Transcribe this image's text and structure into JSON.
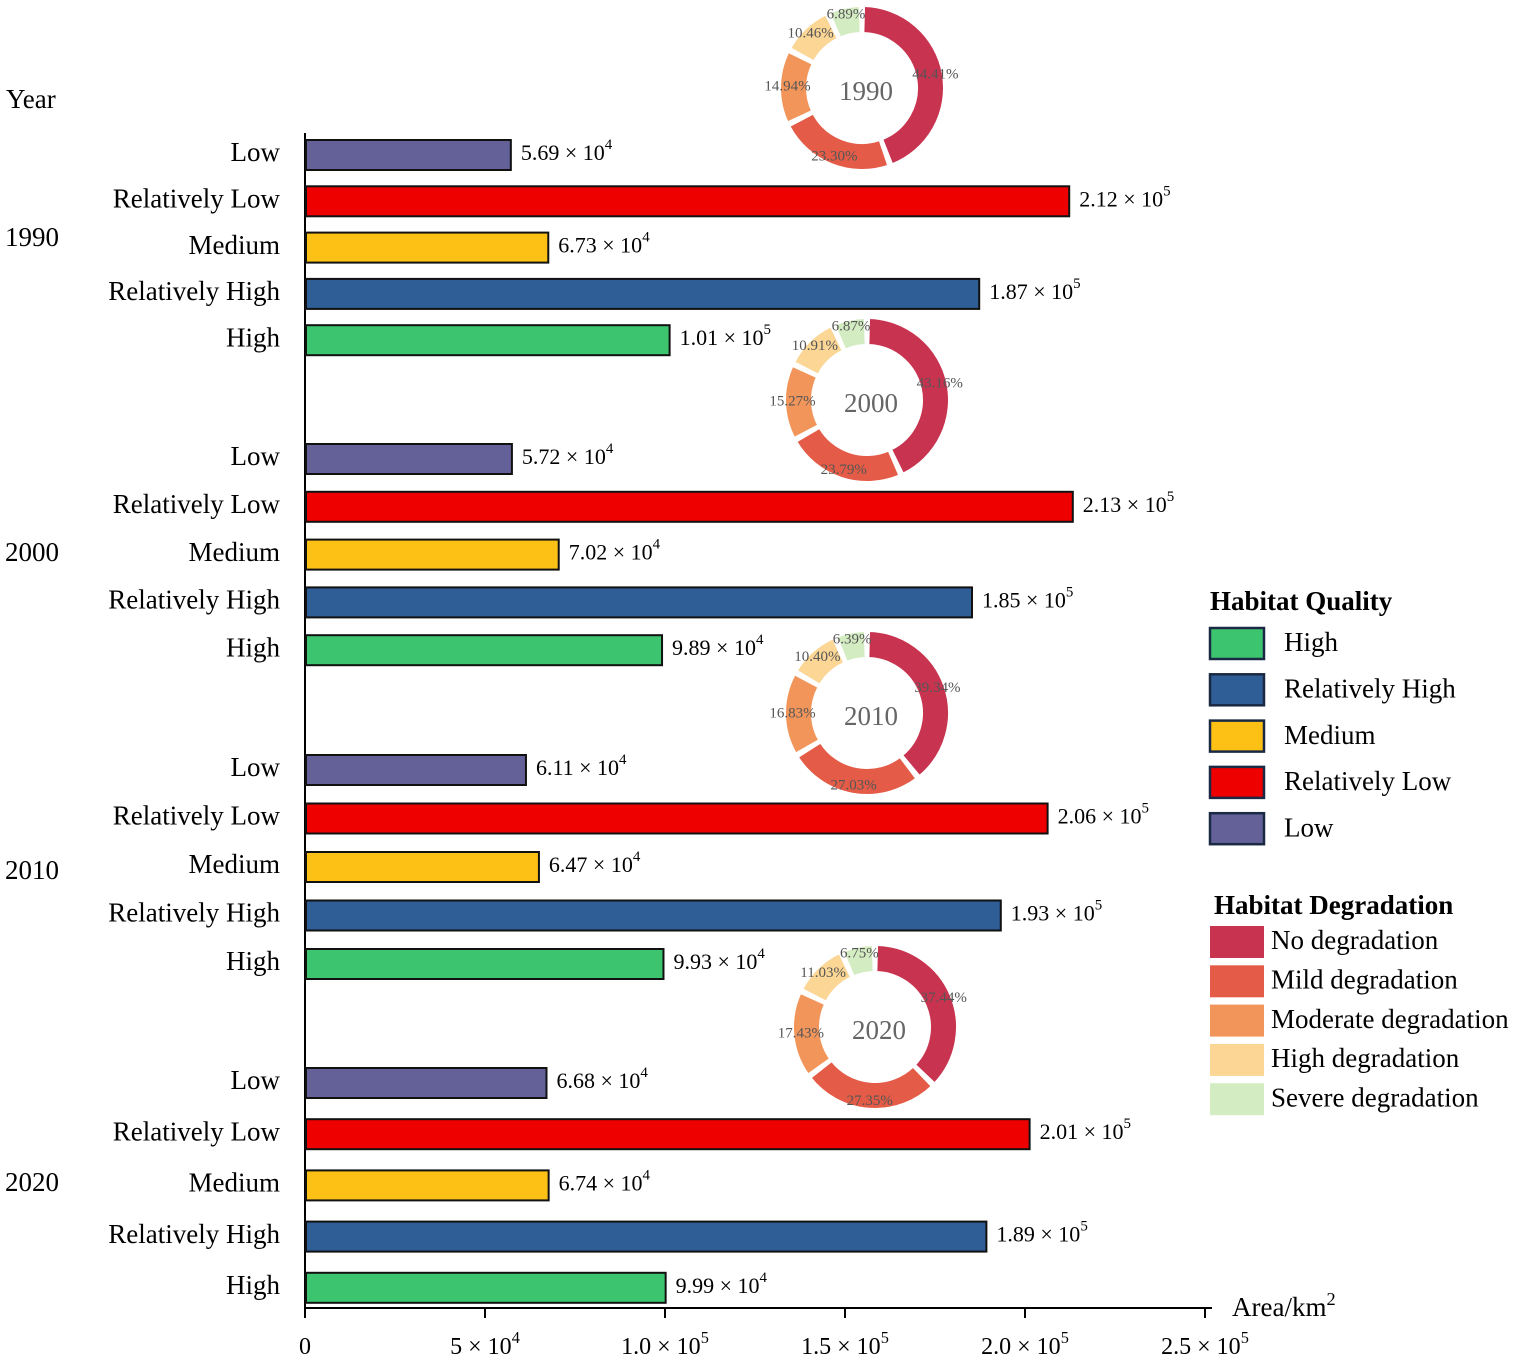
{
  "chart_data": {
    "type": "bar",
    "orientation": "horizontal",
    "y_title": "Year",
    "x_title": "Area/km",
    "x_title_sup": "2",
    "xlim": [
      0,
      250000
    ],
    "x_ticks": [
      {
        "value": 0,
        "label": "0",
        "sup": ""
      },
      {
        "value": 50000,
        "label": "5 × 10",
        "sup": "4"
      },
      {
        "value": 100000,
        "label": "1.0 × 10",
        "sup": "5"
      },
      {
        "value": 150000,
        "label": "1.5 × 10",
        "sup": "5"
      },
      {
        "value": 200000,
        "label": "2.0 × 10",
        "sup": "5"
      },
      {
        "value": 250000,
        "label": "2.5 × 10",
        "sup": "5"
      }
    ],
    "groups": [
      {
        "year": "1990",
        "bars": [
          {
            "category": "Low",
            "value": 56900,
            "label": "5.69 × 10",
            "sup": "4"
          },
          {
            "category": "Relatively Low",
            "value": 212000,
            "label": "2.12 × 10",
            "sup": "5"
          },
          {
            "category": "Medium",
            "value": 67300,
            "label": "6.73 × 10",
            "sup": "4"
          },
          {
            "category": "Relatively High",
            "value": 187000,
            "label": "1.87 × 10",
            "sup": "5"
          },
          {
            "category": "High",
            "value": 101000,
            "label": "1.01 × 10",
            "sup": "5"
          }
        ],
        "donut": {
          "center": "1990",
          "slices": [
            {
              "name": "No degradation",
              "value": 44.41,
              "label": "44.41%"
            },
            {
              "name": "Mild degradation",
              "value": 23.3,
              "label": "23.30%"
            },
            {
              "name": "Moderate degradation",
              "value": 14.94,
              "label": "14.94%"
            },
            {
              "name": "High degradation",
              "value": 10.46,
              "label": "10.46%"
            },
            {
              "name": "Severe degradation",
              "value": 6.89,
              "label": "6.89%"
            }
          ]
        }
      },
      {
        "year": "2000",
        "bars": [
          {
            "category": "Low",
            "value": 57200,
            "label": "5.72 × 10",
            "sup": "4"
          },
          {
            "category": "Relatively Low",
            "value": 213000,
            "label": "2.13 × 10",
            "sup": "5"
          },
          {
            "category": "Medium",
            "value": 70200,
            "label": "7.02 × 10",
            "sup": "4"
          },
          {
            "category": "Relatively High",
            "value": 185000,
            "label": "1.85 × 10",
            "sup": "5"
          },
          {
            "category": "High",
            "value": 98900,
            "label": "9.89 × 10",
            "sup": "4"
          }
        ],
        "donut": {
          "center": "2000",
          "slices": [
            {
              "name": "No degradation",
              "value": 43.16,
              "label": "43.16%"
            },
            {
              "name": "Mild degradation",
              "value": 23.79,
              "label": "23.79%"
            },
            {
              "name": "Moderate degradation",
              "value": 15.27,
              "label": "15.27%"
            },
            {
              "name": "High degradation",
              "value": 10.91,
              "label": "10.91%"
            },
            {
              "name": "Severe degradation",
              "value": 6.87,
              "label": "6.87%"
            }
          ]
        }
      },
      {
        "year": "2010",
        "bars": [
          {
            "category": "Low",
            "value": 61100,
            "label": "6.11 × 10",
            "sup": "4"
          },
          {
            "category": "Relatively Low",
            "value": 206000,
            "label": "2.06 × 10",
            "sup": "5"
          },
          {
            "category": "Medium",
            "value": 64700,
            "label": "6.47 × 10",
            "sup": "4"
          },
          {
            "category": "Relatively High",
            "value": 193000,
            "label": "1.93 × 10",
            "sup": "5"
          },
          {
            "category": "High",
            "value": 99300,
            "label": "9.93 × 10",
            "sup": "4"
          }
        ],
        "donut": {
          "center": "2010",
          "slices": [
            {
              "name": "No degradation",
              "value": 39.34,
              "label": "39.34%"
            },
            {
              "name": "Mild degradation",
              "value": 27.03,
              "label": "27.03%"
            },
            {
              "name": "Moderate degradation",
              "value": 16.83,
              "label": "16.83%"
            },
            {
              "name": "High degradation",
              "value": 10.4,
              "label": "10.40%"
            },
            {
              "name": "Severe degradation",
              "value": 6.39,
              "label": "6.39%"
            }
          ]
        }
      },
      {
        "year": "2020",
        "bars": [
          {
            "category": "Low",
            "value": 66800,
            "label": "6.68 × 10",
            "sup": "4"
          },
          {
            "category": "Relatively Low",
            "value": 201000,
            "label": "2.01 × 10",
            "sup": "5"
          },
          {
            "category": "Medium",
            "value": 67400,
            "label": "6.74 × 10",
            "sup": "4"
          },
          {
            "category": "Relatively High",
            "value": 189000,
            "label": "1.89 × 10",
            "sup": "5"
          },
          {
            "category": "High",
            "value": 99900,
            "label": "9.99 × 10",
            "sup": "4"
          }
        ],
        "donut": {
          "center": "2020",
          "slices": [
            {
              "name": "No degradation",
              "value": 37.44,
              "label": "37.44%"
            },
            {
              "name": "Mild degradation",
              "value": 27.35,
              "label": "27.35%"
            },
            {
              "name": "Moderate degradation",
              "value": 17.43,
              "label": "17.43%"
            },
            {
              "name": "High degradation",
              "value": 11.03,
              "label": "11.03%"
            },
            {
              "name": "Severe degradation",
              "value": 6.75,
              "label": "6.75%"
            }
          ]
        }
      }
    ],
    "legend_quality": {
      "title": "Habitat Quality",
      "placement": "right",
      "items": [
        {
          "name": "High",
          "color": "#3cc46e"
        },
        {
          "name": "Relatively High",
          "color": "#2f5d95"
        },
        {
          "name": "Medium",
          "color": "#fdc014"
        },
        {
          "name": "Relatively Low",
          "color": "#ee0000"
        },
        {
          "name": "Low",
          "color": "#636197"
        }
      ]
    },
    "legend_degradation": {
      "title": "Habitat Degradation",
      "placement": "right",
      "items": [
        {
          "name": "No degradation",
          "color": "#c8334f"
        },
        {
          "name": "Mild degradation",
          "color": "#e45c47"
        },
        {
          "name": "Moderate degradation",
          "color": "#f2955a"
        },
        {
          "name": "High degradation",
          "color": "#fcd695"
        },
        {
          "name": "Severe degradation",
          "color": "#d4ecc2"
        }
      ]
    }
  }
}
